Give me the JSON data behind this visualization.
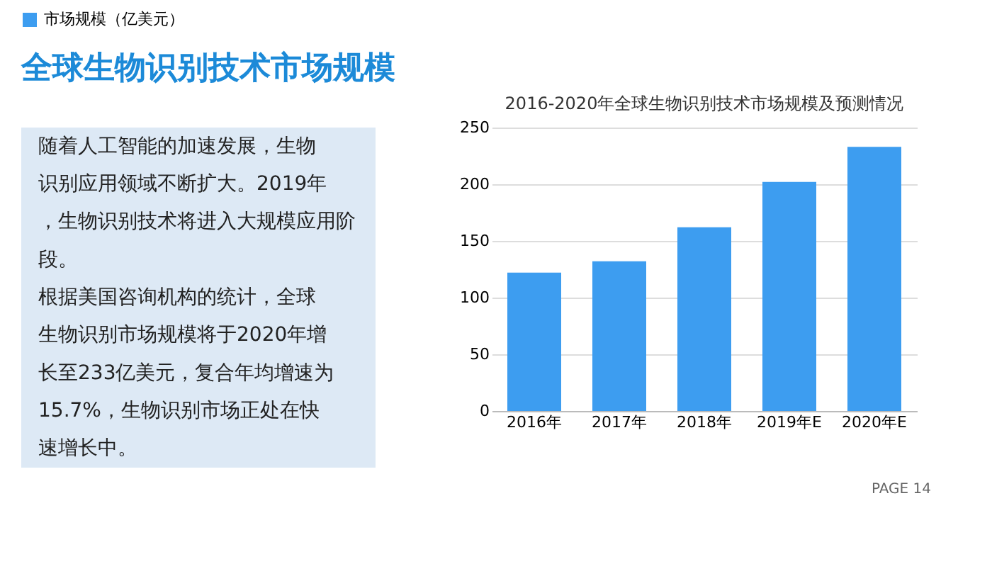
{
  "chart_data": [
    {
      "type": "other",
      "title": "全球生物识别技术市场规模",
      "annotations": [
        "随着人工智能的加速发展，生物识别应用领域不断扩大。2019年，生物识别技术将进入大规模应用阶段。",
        "根据美国咨询机构的统计，全球生物识别市场规模将于2020年增长至233亿美元，复合年均增速为15.7%，生物识别市场正处在快速增长中。"
      ]
    },
    {
      "type": "bar",
      "title": "2016-2020年全球生物识别技术市场规模及预测情况",
      "categories": [
        "2016年",
        "2017年",
        "2018年",
        "2019年E",
        "2020年E"
      ],
      "series": [
        {
          "name": "市场规模（亿美元）",
          "color": "#3d9df0",
          "values": [
            122,
            132,
            162,
            202,
            233
          ]
        }
      ],
      "ylim": [
        0,
        250
      ],
      "yticks": [
        0,
        50,
        100,
        150,
        200,
        250
      ],
      "grid": "y",
      "legend": "top",
      "annotations": [
        "PAGE 14"
      ]
    }
  ]
}
